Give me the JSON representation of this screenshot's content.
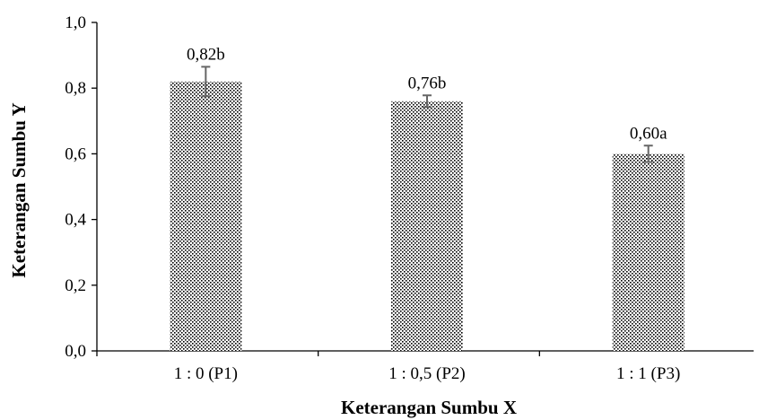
{
  "chart_data": {
    "type": "bar",
    "title": "",
    "xlabel": "Keterangan Sumbu X",
    "ylabel": "Keterangan Sumbu Y",
    "categories": [
      "1 : 0 (P1)",
      "1 : 0,5 (P2)",
      "1 : 1 (P3)"
    ],
    "values": [
      0.82,
      0.76,
      0.6
    ],
    "error": [
      0.045,
      0.018,
      0.025
    ],
    "data_labels": [
      "0,82b",
      "0,76b",
      "0,60a"
    ],
    "ylim": [
      0,
      1.0
    ],
    "yticks": [
      0.0,
      0.2,
      0.4,
      0.6,
      0.8,
      1.0
    ],
    "ytick_labels": [
      "0,0",
      "0,2",
      "0,4",
      "0,6",
      "0,8",
      "1,0"
    ],
    "grid": false,
    "legend": "none",
    "bar_fill": "dotted pattern",
    "colors": {
      "bar_dots": "#000000",
      "bar_bg": "#ffffff",
      "error_bar": "#666666",
      "axis": "#000000"
    }
  }
}
